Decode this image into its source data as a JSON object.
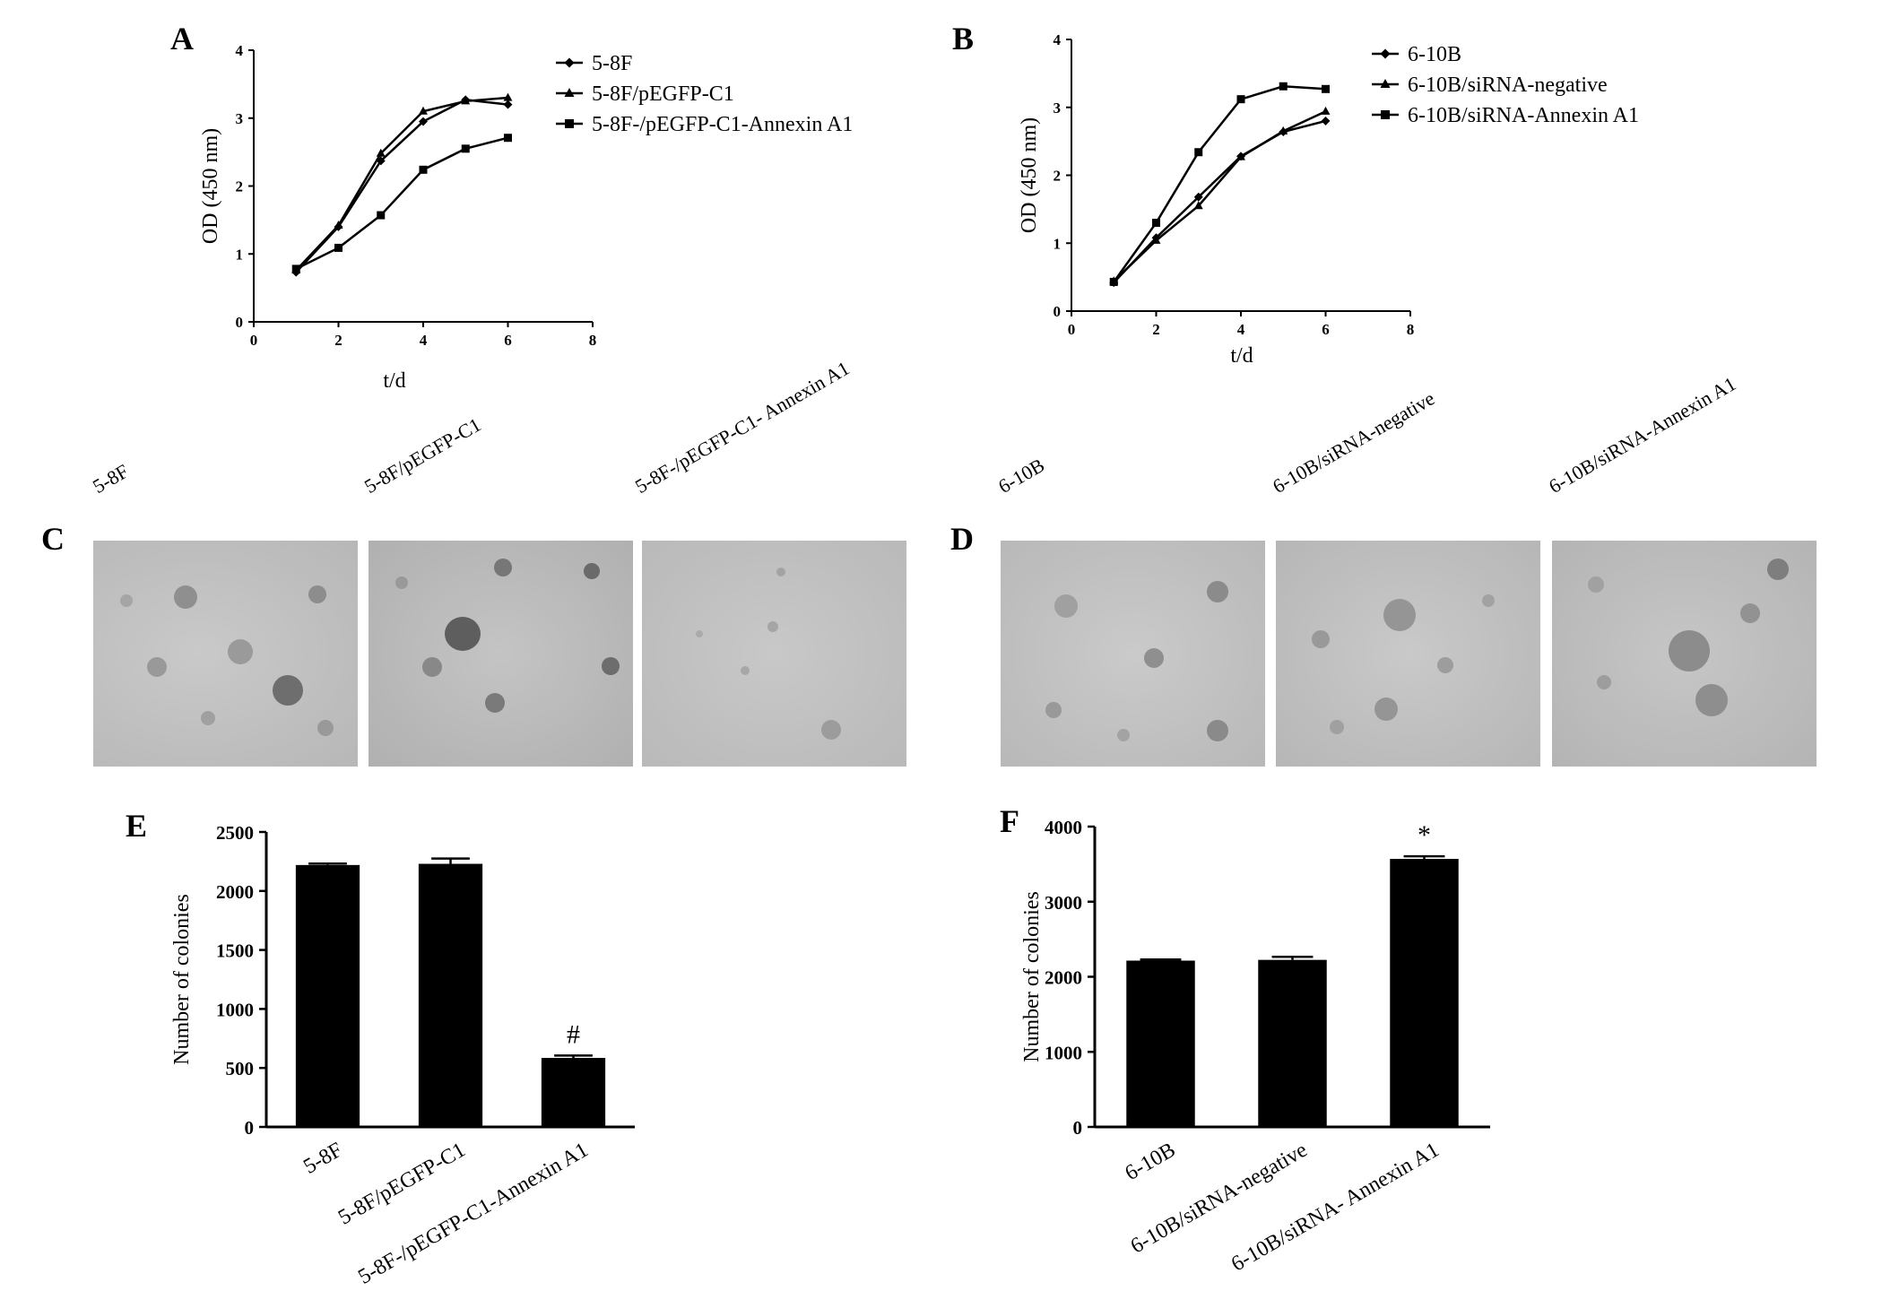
{
  "panels": {
    "A": {
      "letter": "A"
    },
    "B": {
      "letter": "B"
    },
    "C": {
      "letter": "C",
      "labels": [
        "5-8F",
        "5-8F/pEGFP-C1",
        "5-8F-/pEGFP-C1- Annexin A1"
      ]
    },
    "D": {
      "letter": "D",
      "labels": [
        "6-10B",
        "6-10B/siRNA-negative",
        "6-10B/siRNA-Annexin A1"
      ]
    },
    "E": {
      "letter": "E"
    },
    "F": {
      "letter": "F"
    }
  },
  "chart_data": [
    {
      "panel": "A",
      "type": "line",
      "xlabel": "t/d",
      "ylabel": "OD (450 nm)",
      "xlim": [
        0,
        8
      ],
      "ylim": [
        0,
        4
      ],
      "xticks": [
        0,
        2,
        4,
        6,
        8
      ],
      "yticks": [
        0,
        1,
        2,
        3,
        4
      ],
      "x": [
        1,
        2,
        3,
        4,
        5,
        6
      ],
      "legend_position": "top-right",
      "series": [
        {
          "name": "5-8F",
          "marker": "diamond",
          "values": [
            0.73,
            1.4,
            2.37,
            2.95,
            3.27,
            3.2
          ]
        },
        {
          "name": "5-8F/pEGFP-C1",
          "marker": "triangle",
          "values": [
            0.76,
            1.42,
            2.48,
            3.1,
            3.25,
            3.3
          ]
        },
        {
          "name": "5-8F-/pEGFP-C1-Annexin A1",
          "marker": "square",
          "values": [
            0.78,
            1.09,
            1.57,
            2.24,
            2.55,
            2.71
          ]
        }
      ]
    },
    {
      "panel": "B",
      "type": "line",
      "xlabel": "t/d",
      "ylabel": "OD (450 nm)",
      "xlim": [
        0,
        8
      ],
      "ylim": [
        0,
        4
      ],
      "xticks": [
        0,
        2,
        4,
        6,
        8
      ],
      "yticks": [
        0,
        1,
        2,
        3,
        4
      ],
      "x": [
        1,
        2,
        3,
        4,
        5,
        6
      ],
      "legend_position": "top-right",
      "series": [
        {
          "name": "6-10B",
          "marker": "diamond",
          "values": [
            0.42,
            1.08,
            1.68,
            2.28,
            2.64,
            2.8
          ]
        },
        {
          "name": "6-10B/siRNA-negative",
          "marker": "triangle",
          "values": [
            0.44,
            1.04,
            1.55,
            2.27,
            2.65,
            2.94
          ]
        },
        {
          "name": "6-10B/siRNA-Annexin A1",
          "marker": "square",
          "values": [
            0.43,
            1.3,
            2.34,
            3.12,
            3.31,
            3.27
          ]
        }
      ]
    },
    {
      "panel": "E",
      "type": "bar",
      "ylabel": "Number of colonies",
      "ylim": [
        0,
        2500
      ],
      "yticks": [
        0,
        500,
        1000,
        1500,
        2000,
        2500
      ],
      "categories": [
        "5-8F",
        "5-8F/pEGFP-C1",
        "5-8F-/pEGFP-C1-Annexin A1"
      ],
      "values": [
        2220,
        2230,
        585
      ],
      "errors": [
        12,
        45,
        20
      ],
      "annotations": [
        "",
        "",
        "#"
      ]
    },
    {
      "panel": "F",
      "type": "bar",
      "ylabel": "Number of colonies",
      "ylim": [
        0,
        4000
      ],
      "yticks": [
        0,
        1000,
        2000,
        3000,
        4000
      ],
      "categories": [
        "6-10B",
        "6-10B/siRNA-negative",
        "6-10B/siRNA- Annexin A1"
      ],
      "values": [
        2215,
        2225,
        3570
      ],
      "errors": [
        15,
        40,
        35
      ],
      "annotations": [
        "",
        "",
        "*"
      ]
    }
  ]
}
